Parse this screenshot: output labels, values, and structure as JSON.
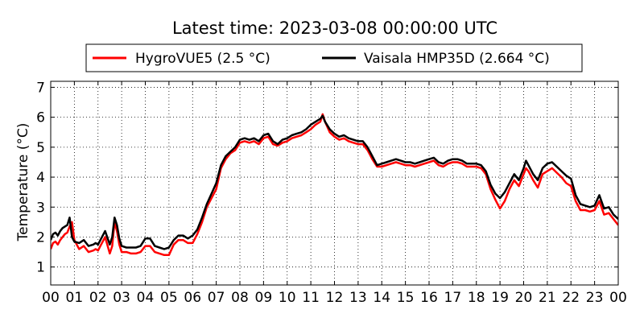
{
  "chart_data": {
    "type": "line",
    "title": "Latest time: 2023-03-08 00:00:00 UTC",
    "xlabel": "",
    "ylabel": "Temperature (°C)",
    "xlim": [
      0,
      24
    ],
    "ylim": [
      0.4,
      7.2
    ],
    "x_ticks": [
      "00",
      "01",
      "02",
      "03",
      "04",
      "05",
      "06",
      "07",
      "08",
      "09",
      "10",
      "11",
      "12",
      "13",
      "14",
      "15",
      "16",
      "17",
      "18",
      "19",
      "20",
      "21",
      "22",
      "23",
      "00"
    ],
    "y_ticks": [
      1,
      2,
      3,
      4,
      5,
      6,
      7
    ],
    "grid": true,
    "legend_position": "top-center",
    "series": [
      {
        "name": "HygroVUE5 (2.5 °C)",
        "color": "#ff0000",
        "x": [
          0.0,
          0.1,
          0.2,
          0.3,
          0.4,
          0.5,
          0.6,
          0.7,
          0.8,
          0.9,
          1.0,
          1.2,
          1.4,
          1.6,
          1.8,
          1.9,
          2.0,
          2.1,
          2.3,
          2.5,
          2.6,
          2.7,
          2.8,
          2.9,
          3.0,
          3.2,
          3.4,
          3.6,
          3.8,
          4.0,
          4.2,
          4.4,
          4.6,
          4.8,
          5.0,
          5.2,
          5.4,
          5.6,
          5.8,
          6.0,
          6.2,
          6.4,
          6.6,
          6.8,
          7.0,
          7.2,
          7.4,
          7.6,
          7.8,
          8.0,
          8.2,
          8.4,
          8.6,
          8.8,
          9.0,
          9.2,
          9.4,
          9.6,
          9.8,
          10.0,
          10.2,
          10.4,
          10.6,
          10.8,
          11.0,
          11.2,
          11.4,
          11.5,
          11.6,
          11.8,
          12.0,
          12.2,
          12.4,
          12.6,
          12.8,
          13.0,
          13.2,
          13.4,
          13.6,
          13.8,
          14.0,
          14.2,
          14.4,
          14.6,
          14.8,
          15.0,
          15.2,
          15.4,
          15.6,
          15.8,
          16.0,
          16.2,
          16.4,
          16.6,
          16.8,
          17.0,
          17.2,
          17.4,
          17.6,
          17.8,
          18.0,
          18.2,
          18.4,
          18.6,
          18.8,
          19.0,
          19.2,
          19.4,
          19.6,
          19.8,
          20.0,
          20.1,
          20.2,
          20.4,
          20.6,
          20.8,
          21.0,
          21.2,
          21.4,
          21.6,
          21.8,
          22.0,
          22.2,
          22.4,
          22.6,
          22.8,
          23.0,
          23.2,
          23.4,
          23.6,
          23.8,
          24.0
        ],
        "y": [
          1.6,
          1.8,
          1.85,
          1.75,
          1.9,
          2.0,
          2.1,
          2.15,
          2.35,
          2.5,
          1.9,
          1.6,
          1.7,
          1.5,
          1.55,
          1.6,
          1.55,
          1.7,
          2.0,
          1.45,
          1.7,
          2.5,
          2.2,
          1.75,
          1.5,
          1.5,
          1.45,
          1.45,
          1.5,
          1.7,
          1.7,
          1.5,
          1.45,
          1.4,
          1.4,
          1.75,
          1.9,
          1.9,
          1.8,
          1.8,
          2.1,
          2.5,
          3.0,
          3.3,
          3.6,
          4.3,
          4.6,
          4.8,
          4.9,
          5.15,
          5.2,
          5.15,
          5.2,
          5.1,
          5.3,
          5.35,
          5.1,
          5.05,
          5.15,
          5.2,
          5.3,
          5.35,
          5.4,
          5.5,
          5.6,
          5.75,
          5.85,
          6.1,
          5.85,
          5.5,
          5.35,
          5.25,
          5.3,
          5.2,
          5.15,
          5.1,
          5.1,
          4.9,
          4.6,
          4.35,
          4.35,
          4.4,
          4.45,
          4.5,
          4.45,
          4.4,
          4.4,
          4.35,
          4.4,
          4.45,
          4.5,
          4.55,
          4.4,
          4.35,
          4.45,
          4.5,
          4.5,
          4.45,
          4.35,
          4.35,
          4.35,
          4.3,
          4.1,
          3.6,
          3.25,
          2.95,
          3.2,
          3.6,
          3.9,
          3.7,
          4.1,
          4.3,
          4.2,
          3.9,
          3.65,
          4.1,
          4.2,
          4.3,
          4.15,
          4.0,
          3.8,
          3.7,
          3.2,
          2.9,
          2.9,
          2.85,
          2.9,
          3.2,
          2.75,
          2.8,
          2.6,
          2.4
        ]
      },
      {
        "name": "Vaisala HMP35D (2.664 °C)",
        "color": "#000000",
        "x": [
          0.0,
          0.1,
          0.2,
          0.3,
          0.4,
          0.5,
          0.6,
          0.7,
          0.8,
          0.9,
          1.0,
          1.2,
          1.4,
          1.6,
          1.8,
          1.9,
          2.0,
          2.1,
          2.3,
          2.5,
          2.6,
          2.7,
          2.8,
          2.9,
          3.0,
          3.2,
          3.4,
          3.6,
          3.8,
          4.0,
          4.2,
          4.4,
          4.6,
          4.8,
          5.0,
          5.2,
          5.4,
          5.6,
          5.8,
          6.0,
          6.2,
          6.4,
          6.6,
          6.8,
          7.0,
          7.2,
          7.4,
          7.6,
          7.8,
          8.0,
          8.2,
          8.4,
          8.6,
          8.8,
          9.0,
          9.2,
          9.4,
          9.6,
          9.8,
          10.0,
          10.2,
          10.4,
          10.6,
          10.8,
          11.0,
          11.2,
          11.4,
          11.5,
          11.6,
          11.8,
          12.0,
          12.2,
          12.4,
          12.6,
          12.8,
          13.0,
          13.2,
          13.4,
          13.6,
          13.8,
          14.0,
          14.2,
          14.4,
          14.6,
          14.8,
          15.0,
          15.2,
          15.4,
          15.6,
          15.8,
          16.0,
          16.2,
          16.4,
          16.6,
          16.8,
          17.0,
          17.2,
          17.4,
          17.6,
          17.8,
          18.0,
          18.2,
          18.4,
          18.6,
          18.8,
          19.0,
          19.2,
          19.4,
          19.6,
          19.8,
          20.0,
          20.1,
          20.2,
          20.4,
          20.6,
          20.8,
          21.0,
          21.2,
          21.4,
          21.6,
          21.8,
          22.0,
          22.2,
          22.4,
          22.6,
          22.8,
          23.0,
          23.2,
          23.4,
          23.6,
          23.8,
          24.0
        ],
        "y": [
          1.9,
          2.1,
          2.15,
          2.05,
          2.2,
          2.3,
          2.35,
          2.4,
          2.65,
          2.0,
          1.85,
          1.8,
          1.9,
          1.7,
          1.75,
          1.8,
          1.75,
          1.9,
          2.2,
          1.75,
          2.0,
          2.65,
          2.4,
          1.95,
          1.7,
          1.65,
          1.65,
          1.65,
          1.7,
          1.95,
          1.95,
          1.7,
          1.65,
          1.6,
          1.65,
          1.9,
          2.05,
          2.05,
          1.95,
          2.05,
          2.25,
          2.65,
          3.1,
          3.45,
          3.8,
          4.4,
          4.7,
          4.85,
          5.0,
          5.25,
          5.3,
          5.25,
          5.3,
          5.2,
          5.4,
          5.45,
          5.2,
          5.1,
          5.25,
          5.3,
          5.4,
          5.45,
          5.5,
          5.6,
          5.75,
          5.85,
          5.95,
          6.05,
          5.85,
          5.6,
          5.45,
          5.35,
          5.4,
          5.3,
          5.25,
          5.2,
          5.2,
          5.0,
          4.7,
          4.4,
          4.45,
          4.5,
          4.55,
          4.6,
          4.55,
          4.5,
          4.5,
          4.45,
          4.5,
          4.55,
          4.6,
          4.65,
          4.5,
          4.45,
          4.55,
          4.6,
          4.6,
          4.55,
          4.45,
          4.45,
          4.45,
          4.4,
          4.2,
          3.75,
          3.45,
          3.3,
          3.5,
          3.8,
          4.1,
          3.9,
          4.3,
          4.55,
          4.4,
          4.1,
          3.9,
          4.3,
          4.45,
          4.5,
          4.35,
          4.2,
          4.05,
          3.95,
          3.4,
          3.1,
          3.05,
          3.0,
          3.05,
          3.4,
          2.95,
          3.0,
          2.75,
          2.6
        ]
      }
    ]
  }
}
